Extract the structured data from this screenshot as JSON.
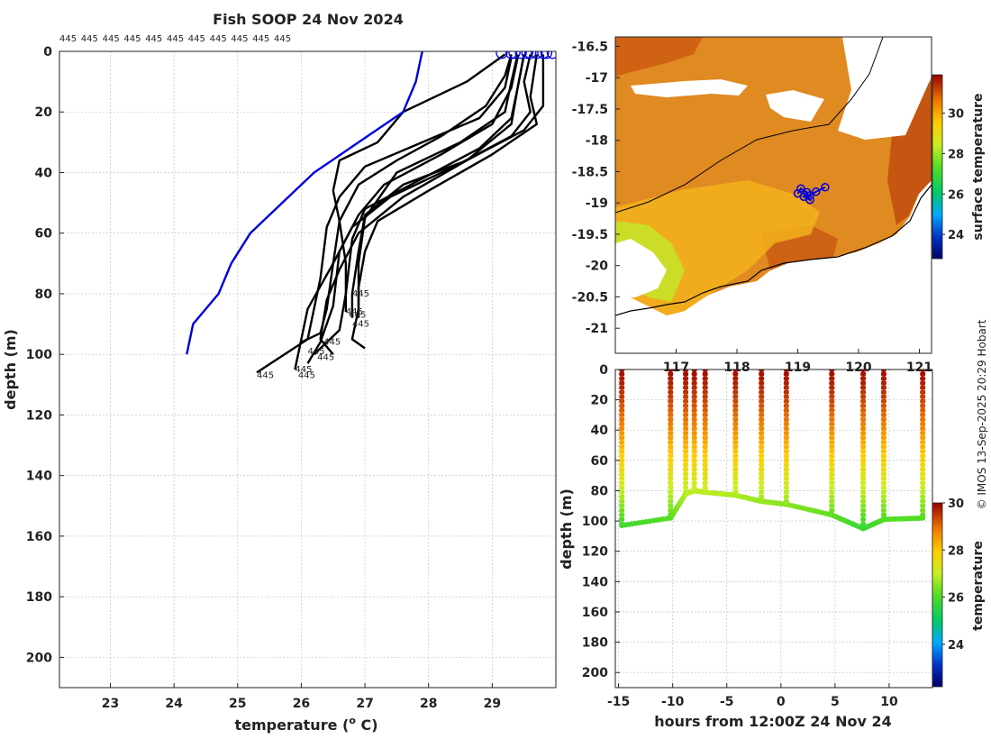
{
  "title": "Fish SOOP 24 Nov 2024",
  "credit": "© IMOS 13-Sep-2025 20:29 Hobart",
  "profile_labels": [
    "445",
    "445",
    "445",
    "445",
    "445",
    "445",
    "445",
    "445",
    "445",
    "445",
    "445"
  ],
  "bottom_labels": [
    "445",
    "445",
    "445",
    "445",
    "445",
    "445",
    "445",
    "445",
    "445",
    "445"
  ],
  "chart_data": [
    {
      "type": "line",
      "name": "temperature-depth profiles",
      "xlabel": "temperature (o C)",
      "xlabel_main": "temperature (",
      "xlabel_sup": "o",
      "xlabel_end": " C)",
      "ylabel": "depth (m)",
      "xlim": [
        22.2,
        30.0
      ],
      "ylim": [
        0,
        210
      ],
      "xticks": [
        23,
        24,
        25,
        26,
        27,
        28,
        29
      ],
      "yticks": [
        0,
        20,
        40,
        60,
        80,
        100,
        120,
        140,
        160,
        180,
        200
      ],
      "grid": true,
      "reference_profile": {
        "color": "#0000dd",
        "points": [
          [
            27.9,
            0
          ],
          [
            27.8,
            10
          ],
          [
            27.6,
            20
          ],
          [
            26.2,
            40
          ],
          [
            25.7,
            50
          ],
          [
            25.2,
            60
          ],
          [
            24.9,
            70
          ],
          [
            24.7,
            80
          ],
          [
            24.3,
            90
          ],
          [
            24.2,
            100
          ]
        ]
      },
      "profiles": [
        {
          "points": [
            [
              29.4,
              1
            ],
            [
              29.3,
              10
            ],
            [
              29.2,
              20
            ],
            [
              28.5,
              30
            ],
            [
              27.5,
              40
            ],
            [
              27.0,
              55
            ],
            [
              26.9,
              70
            ],
            [
              26.9,
              85
            ],
            [
              26.8,
              95
            ],
            [
              27.0,
              98
            ]
          ]
        },
        {
          "points": [
            [
              29.5,
              1
            ],
            [
              29.4,
              12
            ],
            [
              29.3,
              22
            ],
            [
              28.8,
              32
            ],
            [
              27.9,
              42
            ],
            [
              27.0,
              52
            ],
            [
              26.8,
              62
            ],
            [
              26.7,
              80
            ],
            [
              26.6,
              92
            ],
            [
              26.2,
              100
            ]
          ]
        },
        {
          "points": [
            [
              29.6,
              1
            ],
            [
              29.5,
              10
            ],
            [
              29.6,
              20
            ],
            [
              29.3,
              28
            ],
            [
              28.4,
              38
            ],
            [
              27.4,
              48
            ],
            [
              26.8,
              58
            ],
            [
              26.5,
              70
            ],
            [
              26.1,
              85
            ],
            [
              25.9,
              105
            ]
          ]
        },
        {
          "points": [
            [
              29.3,
              2
            ],
            [
              29.2,
              12
            ],
            [
              28.8,
              22
            ],
            [
              27.9,
              30
            ],
            [
              27.0,
              38
            ],
            [
              26.6,
              48
            ],
            [
              26.4,
              58
            ],
            [
              26.3,
              75
            ],
            [
              26.1,
              95
            ],
            [
              25.3,
              106
            ]
          ]
        },
        {
          "points": [
            [
              29.7,
              1
            ],
            [
              29.6,
              15
            ],
            [
              29.7,
              24
            ],
            [
              29.0,
              34
            ],
            [
              28.0,
              46
            ],
            [
              27.2,
              56
            ],
            [
              27.0,
              66
            ],
            [
              26.9,
              78
            ],
            [
              26.9,
              88
            ]
          ]
        },
        {
          "points": [
            [
              29.2,
              1
            ],
            [
              28.6,
              10
            ],
            [
              27.6,
              20
            ],
            [
              27.2,
              30
            ],
            [
              26.6,
              36
            ],
            [
              26.5,
              46
            ],
            [
              26.6,
              56
            ],
            [
              26.7,
              70
            ],
            [
              26.7,
              86
            ]
          ]
        },
        {
          "points": [
            [
              29.8,
              1
            ],
            [
              29.8,
              10
            ],
            [
              29.8,
              18
            ],
            [
              29.5,
              26
            ],
            [
              28.6,
              36
            ],
            [
              27.6,
              44
            ],
            [
              27.0,
              54
            ],
            [
              26.9,
              66
            ],
            [
              26.8,
              80
            ],
            [
              26.8,
              88
            ]
          ]
        },
        {
          "points": [
            [
              29.4,
              2
            ],
            [
              29.3,
              12
            ],
            [
              29.0,
              24
            ],
            [
              28.2,
              34
            ],
            [
              27.3,
              44
            ],
            [
              26.9,
              54
            ],
            [
              26.6,
              66
            ],
            [
              26.5,
              84
            ],
            [
              26.3,
              96
            ],
            [
              26.1,
              103
            ]
          ]
        },
        {
          "points": [
            [
              29.5,
              1
            ],
            [
              29.4,
              12
            ],
            [
              29.3,
              24
            ],
            [
              28.6,
              36
            ],
            [
              27.6,
              48
            ],
            [
              26.9,
              60
            ],
            [
              26.6,
              72
            ],
            [
              26.4,
              82
            ],
            [
              26.3,
              95
            ],
            [
              26.5,
              100
            ]
          ]
        },
        {
          "points": [
            [
              29.3,
              1
            ],
            [
              29.2,
              8
            ],
            [
              28.9,
              18
            ],
            [
              28.2,
              28
            ],
            [
              27.5,
              36
            ],
            [
              26.9,
              44
            ],
            [
              26.6,
              56
            ],
            [
              26.5,
              70
            ],
            [
              26.4,
              85
            ],
            [
              26.3,
              93
            ],
            [
              26.0,
              96
            ]
          ]
        }
      ],
      "start_markers_x": [
        29.15,
        29.3,
        29.35,
        29.45,
        29.55,
        29.6,
        29.7,
        29.8,
        29.85,
        29.95
      ]
    },
    {
      "type": "heatmap",
      "name": "sea surface temperature map",
      "colorbar_label": "surface temperature",
      "colorbar_ticks": [
        24,
        26,
        28,
        30
      ],
      "colorbar_range": [
        22.8,
        31.9
      ],
      "lat_ticks": [
        -16.5,
        -17,
        -17.5,
        -18,
        -18.5,
        -19,
        -19.5,
        -20,
        -20.5,
        -21
      ],
      "lat_tick_labels": [
        "-16.5",
        "-17",
        "-17.5",
        "-18",
        "-18.5",
        "-19",
        "-19.5",
        "-20",
        "-20.5",
        "-21"
      ],
      "lat_range": [
        -21.4,
        -16.35
      ],
      "lon_ticks": [
        117,
        118,
        119,
        120,
        121
      ],
      "lon_tick_labels": [
        "117",
        "118",
        "119",
        "120",
        "121"
      ],
      "lon_range": [
        116.0,
        121.2
      ],
      "track_color": "#0000dd",
      "track_lonlat": [
        [
          119.0,
          -18.85
        ],
        [
          119.05,
          -18.77
        ],
        [
          119.15,
          -18.83
        ],
        [
          119.2,
          -18.95
        ],
        [
          119.1,
          -18.9
        ],
        [
          119.2,
          -18.88
        ],
        [
          119.3,
          -18.82
        ],
        [
          119.45,
          -18.75
        ]
      ]
    },
    {
      "type": "scatter",
      "name": "temperature along track",
      "xlabel": "hours from 12:00Z 24 Nov 24",
      "ylabel": "depth (m)",
      "xlim": [
        -15.3,
        14
      ],
      "ylim": [
        0,
        210
      ],
      "xticks": [
        -15,
        -10,
        -5,
        0,
        5,
        10
      ],
      "yticks": [
        0,
        20,
        40,
        60,
        80,
        100,
        120,
        140,
        160,
        180,
        200
      ],
      "colorbar_label": "temperature",
      "colorbar_ticks": [
        24,
        26,
        28,
        30
      ],
      "colorbar_range": [
        22.2,
        30.0
      ],
      "casts": [
        {
          "t": -14.7,
          "maxdepth": 103
        },
        {
          "t": -10.2,
          "maxdepth": 98
        },
        {
          "t": -8.8,
          "maxdepth": 82
        },
        {
          "t": -8.0,
          "maxdepth": 80
        },
        {
          "t": -7.0,
          "maxdepth": 81
        },
        {
          "t": -4.2,
          "maxdepth": 83
        },
        {
          "t": -1.8,
          "maxdepth": 87
        },
        {
          "t": 0.5,
          "maxdepth": 89
        },
        {
          "t": 4.7,
          "maxdepth": 96
        },
        {
          "t": 7.6,
          "maxdepth": 105
        },
        {
          "t": 9.5,
          "maxdepth": 99
        },
        {
          "t": 13.1,
          "maxdepth": 98
        }
      ]
    }
  ]
}
